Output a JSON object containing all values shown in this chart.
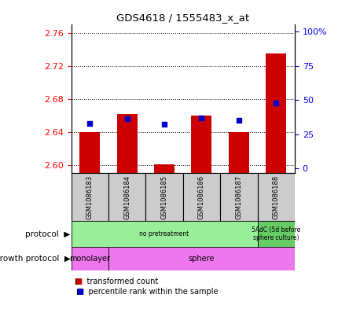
{
  "title": "GDS4618 / 1555483_x_at",
  "samples": [
    "GSM1086183",
    "GSM1086184",
    "GSM1086185",
    "GSM1086186",
    "GSM1086187",
    "GSM1086188"
  ],
  "transformed_counts": [
    2.64,
    2.662,
    2.601,
    2.66,
    2.64,
    2.735
  ],
  "percentile_ranks": [
    33,
    36,
    32,
    37,
    35,
    48
  ],
  "ylim_left": [
    2.59,
    2.77
  ],
  "ylim_right": [
    -3.5,
    105
  ],
  "yticks_left": [
    2.6,
    2.64,
    2.68,
    2.72,
    2.76
  ],
  "yticks_right": [
    0,
    25,
    50,
    75,
    100
  ],
  "ytick_labels_right": [
    "0",
    "25",
    "50",
    "75",
    "100%"
  ],
  "bar_color": "#cc0000",
  "dot_color": "#0000cc",
  "protocol_label": "no pretreatment",
  "protocol2_label": "5AdC (5d before\nsphere culture)",
  "protocol_color": "#99ee99",
  "protocol2_color": "#66cc66",
  "growth_label1": "monolayer",
  "growth_label2": "sphere",
  "growth_color": "#ee77ee",
  "legend_red_label": "transformed count",
  "legend_blue_label": "percentile rank within the sample",
  "protocol_row_label": "protocol",
  "growth_row_label": "growth protocol",
  "sample_box_color": "#cccccc"
}
